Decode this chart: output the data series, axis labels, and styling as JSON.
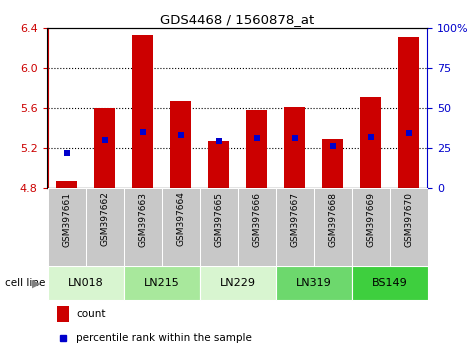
{
  "title": "GDS4468 / 1560878_at",
  "samples": [
    "GSM397661",
    "GSM397662",
    "GSM397663",
    "GSM397664",
    "GSM397665",
    "GSM397666",
    "GSM397667",
    "GSM397668",
    "GSM397669",
    "GSM397670"
  ],
  "count_values": [
    4.87,
    5.6,
    6.33,
    5.67,
    5.27,
    5.58,
    5.61,
    5.29,
    5.71,
    6.31
  ],
  "percentile_values": [
    22,
    30,
    35,
    33,
    29,
    31,
    31,
    26,
    32,
    34
  ],
  "bar_bottom": 4.8,
  "ylim_left": [
    4.8,
    6.4
  ],
  "ylim_right": [
    0,
    100
  ],
  "yticks_left": [
    4.8,
    5.2,
    5.6,
    6.0,
    6.4
  ],
  "yticks_right": [
    0,
    25,
    50,
    75,
    100
  ],
  "cell_lines": [
    {
      "name": "LN018",
      "samples": [
        0,
        1
      ],
      "color": "#d8f5d0"
    },
    {
      "name": "LN215",
      "samples": [
        2,
        3
      ],
      "color": "#a8e89c"
    },
    {
      "name": "LN229",
      "samples": [
        4,
        5
      ],
      "color": "#d8f5d0"
    },
    {
      "name": "LN319",
      "samples": [
        6,
        7
      ],
      "color": "#6dd86d"
    },
    {
      "name": "BS149",
      "samples": [
        8,
        9
      ],
      "color": "#3ecf3e"
    }
  ],
  "bar_color": "#cc0000",
  "percentile_color": "#0000cc",
  "background_color": "#ffffff",
  "sample_bg_color": "#c8c8c8",
  "legend_count_color": "#cc0000",
  "legend_pct_color": "#0000cc",
  "left_axis_color": "#cc0000",
  "right_axis_color": "#0000cc"
}
